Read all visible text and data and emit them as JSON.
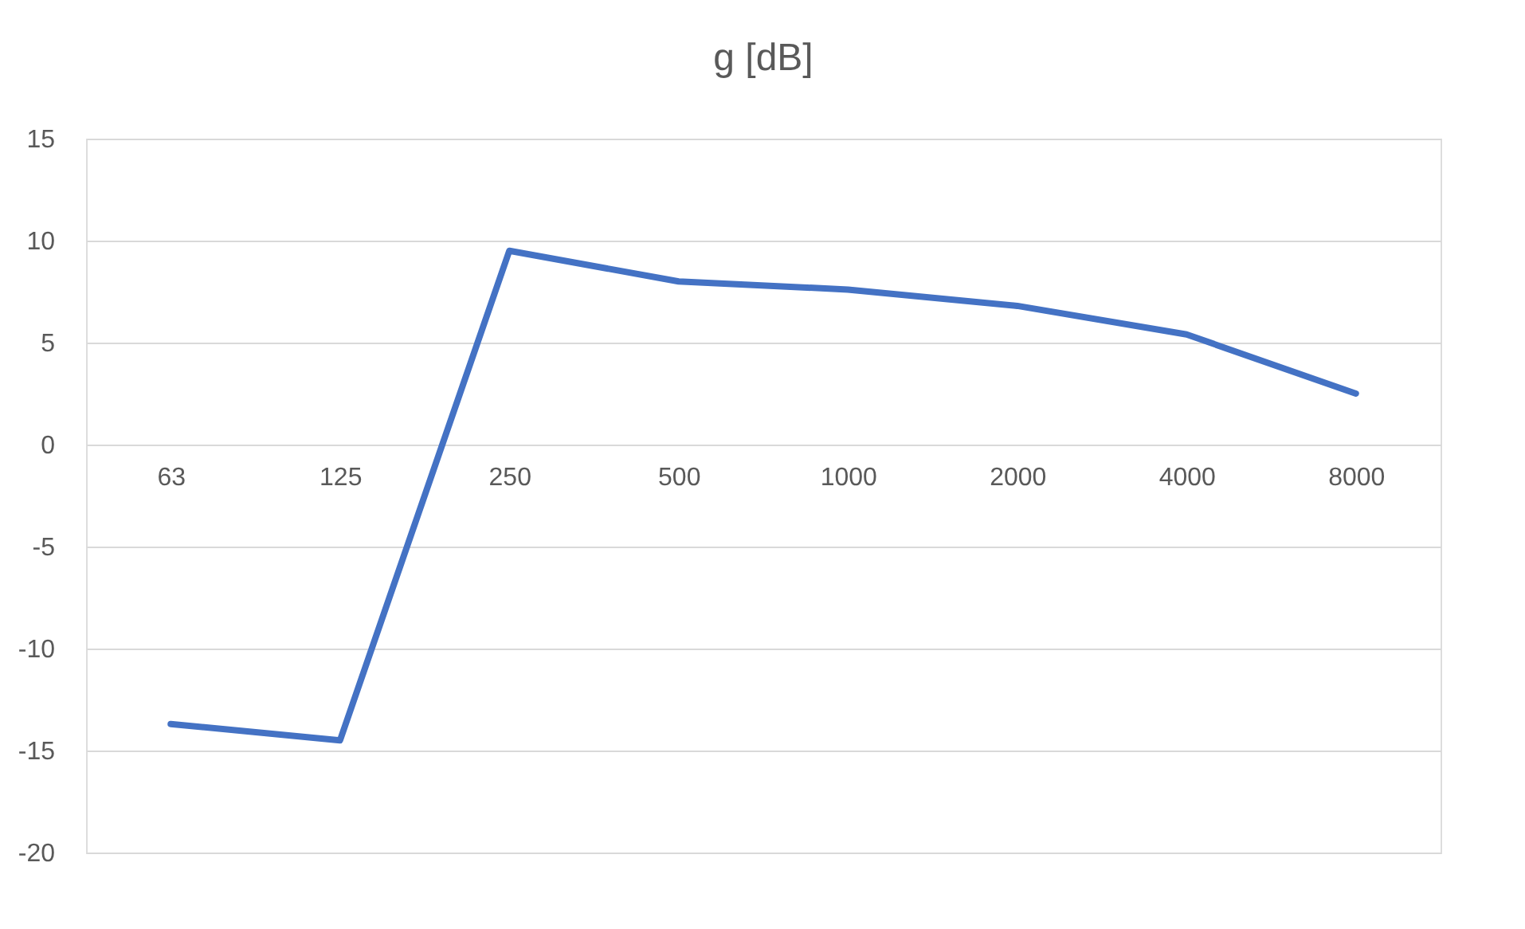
{
  "chart_data": {
    "type": "line",
    "title": "g [dB]",
    "categories": [
      "63",
      "125",
      "250",
      "500",
      "1000",
      "2000",
      "4000",
      "8000"
    ],
    "series": [
      {
        "color": "#4472c4",
        "values": [
          -13.7,
          -14.5,
          9.5,
          8.0,
          7.6,
          6.8,
          5.4,
          2.5
        ]
      }
    ],
    "ylim": [
      -20,
      15
    ],
    "yticks": [
      -20,
      -15,
      -10,
      -5,
      0,
      5,
      10,
      15
    ],
    "grid": "y",
    "legend": false,
    "marker": "none",
    "line_style": "solid"
  }
}
